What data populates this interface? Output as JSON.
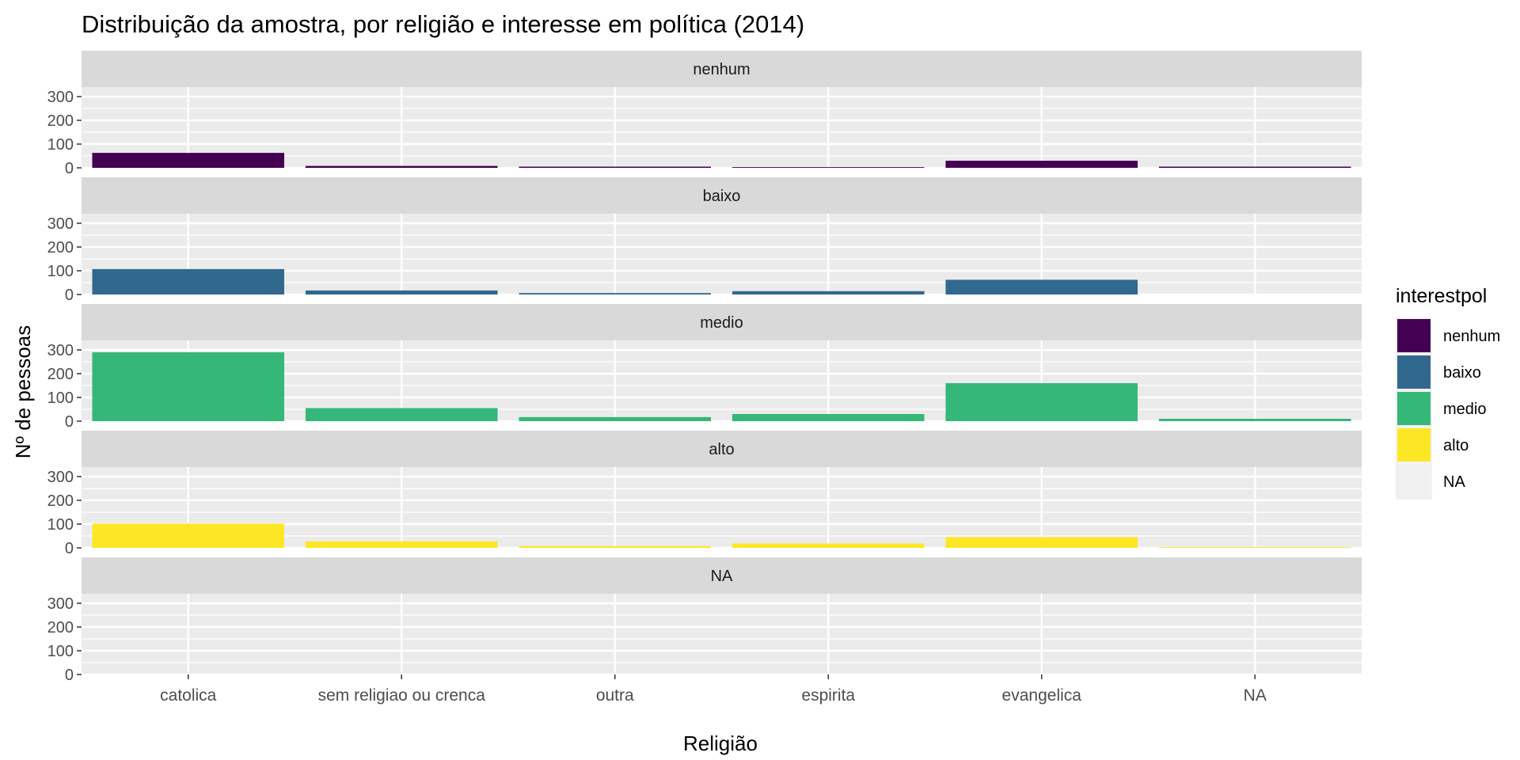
{
  "chart_data": {
    "type": "bar",
    "title": "Distribuição da amostra, por religião e interesse em política (2014)",
    "xlabel": "Religião",
    "ylabel": "Nº de pessoas",
    "categories": [
      "catolica",
      "sem religiao ou crenca",
      "outra",
      "espirita",
      "evangelica",
      "NA"
    ],
    "ylim": [
      0,
      340
    ],
    "yticks": [
      "0",
      "100",
      "200",
      "300"
    ],
    "grid": true,
    "legend": {
      "title": "interestpol",
      "position": "right",
      "entries": [
        "nenhum",
        "baixo",
        "medio",
        "alto",
        "NA"
      ]
    },
    "series": [
      {
        "name": "nenhum",
        "color": "#440154",
        "values": [
          63,
          8,
          5,
          3,
          30,
          5
        ]
      },
      {
        "name": "baixo",
        "color": "#31688E",
        "values": [
          107,
          17,
          6,
          14,
          62,
          0
        ]
      },
      {
        "name": "medio",
        "color": "#35B779",
        "values": [
          290,
          55,
          17,
          30,
          160,
          10
        ]
      },
      {
        "name": "alto",
        "color": "#FDE725",
        "values": [
          102,
          27,
          7,
          18,
          45,
          3
        ]
      },
      {
        "name": "NA",
        "color": "#F0F0F0",
        "values": [
          0,
          0,
          0,
          0,
          0,
          0
        ]
      }
    ]
  }
}
